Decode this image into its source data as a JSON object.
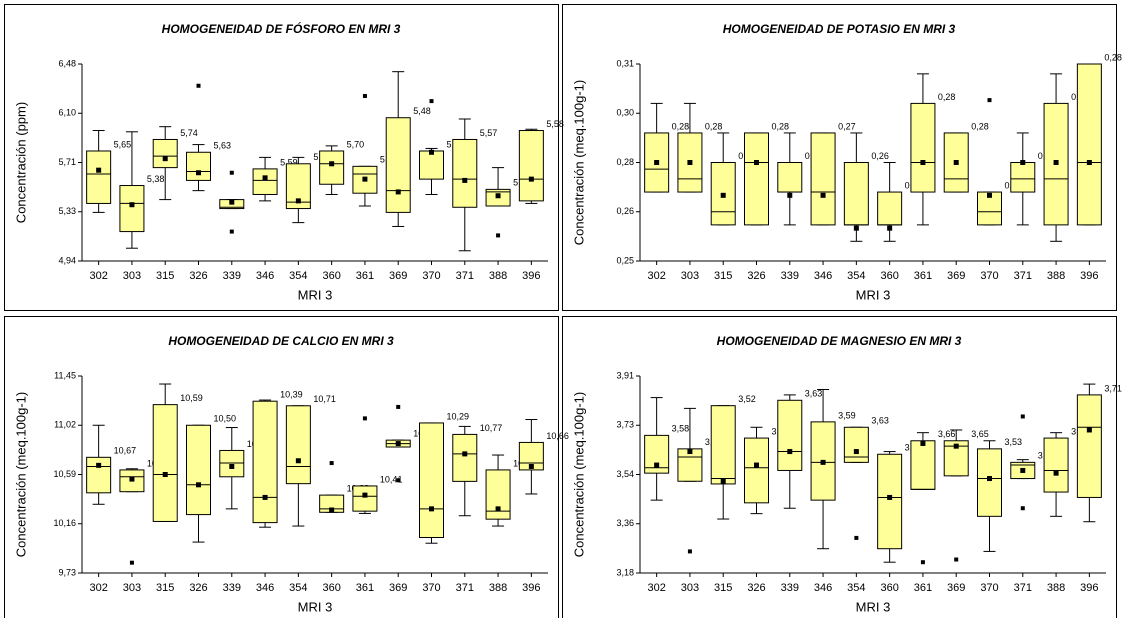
{
  "chart_data": [
    {
      "type": "box",
      "title": "HOMOGENEIDAD DE FÓSFORO EN MRI 3",
      "y_label": "Concentración (ppm)",
      "x_label": "MRI 3",
      "categories": [
        "302",
        "303",
        "315",
        "326",
        "339",
        "346",
        "354",
        "360",
        "361",
        "369",
        "370",
        "371",
        "388",
        "396"
      ],
      "ylim": [
        4.94,
        6.48
      ],
      "yticks": [
        {
          "value": 4.94,
          "label": "4,94"
        },
        {
          "value": 5.325,
          "label": "5,33"
        },
        {
          "value": 5.71,
          "label": "5,71"
        },
        {
          "value": 6.095,
          "label": "6,10"
        },
        {
          "value": 6.48,
          "label": "6,48"
        }
      ],
      "color": "#ffff99",
      "boxes": [
        {
          "low": 5.32,
          "q1": 5.39,
          "median": 5.62,
          "q3": 5.8,
          "high": 5.96,
          "mean": 5.65,
          "outliers": []
        },
        {
          "low": 5.04,
          "q1": 5.17,
          "median": 5.39,
          "q3": 5.53,
          "high": 5.95,
          "mean": 5.38,
          "outliers": []
        },
        {
          "low": 5.42,
          "q1": 5.67,
          "median": 5.76,
          "q3": 5.89,
          "high": 5.99,
          "mean": 5.74,
          "outliers": []
        },
        {
          "low": 5.49,
          "q1": 5.57,
          "median": 5.64,
          "q3": 5.79,
          "high": 5.85,
          "mean": 5.63,
          "outliers": [
            6.31
          ]
        },
        {
          "low": 5.35,
          "q1": 5.35,
          "median": 5.36,
          "q3": 5.42,
          "high": 5.42,
          "mean": 5.4,
          "outliers": [
            5.63,
            5.17
          ]
        },
        {
          "low": 5.41,
          "q1": 5.46,
          "median": 5.57,
          "q3": 5.66,
          "high": 5.75,
          "mean": 5.59,
          "outliers": []
        },
        {
          "low": 5.24,
          "q1": 5.35,
          "median": 5.4,
          "q3": 5.7,
          "high": 5.75,
          "mean": 5.41,
          "outliers": []
        },
        {
          "low": 5.46,
          "q1": 5.54,
          "median": 5.7,
          "q3": 5.8,
          "high": 5.84,
          "mean": 5.7,
          "outliers": []
        },
        {
          "low": 5.37,
          "q1": 5.47,
          "median": 5.62,
          "q3": 5.68,
          "high": 5.68,
          "mean": 5.58,
          "outliers": [
            6.23
          ]
        },
        {
          "low": 5.21,
          "q1": 5.32,
          "median": 5.49,
          "q3": 6.06,
          "high": 6.42,
          "mean": 5.48,
          "outliers": []
        },
        {
          "low": 5.46,
          "q1": 5.58,
          "median": 5.8,
          "q3": 5.8,
          "high": 5.82,
          "mean": 5.79,
          "outliers": [
            6.19
          ]
        },
        {
          "low": 5.02,
          "q1": 5.36,
          "median": 5.58,
          "q3": 5.89,
          "high": 6.05,
          "mean": 5.57,
          "outliers": []
        },
        {
          "low": 5.37,
          "q1": 5.37,
          "median": 5.48,
          "q3": 5.5,
          "high": 5.67,
          "mean": 5.45,
          "outliers": [
            5.14
          ]
        },
        {
          "low": 5.39,
          "q1": 5.41,
          "median": 5.58,
          "q3": 5.96,
          "high": 5.97,
          "mean": 5.58,
          "outliers": []
        }
      ],
      "value_labels": [
        "5,65",
        "5,38",
        "5,74",
        "5,63",
        null,
        "5,59",
        "5,41",
        "5,70",
        "5,58",
        "5,48",
        "5,79",
        "5,57",
        "5,45",
        "5,58"
      ]
    },
    {
      "type": "box",
      "title": "HOMOGENEIDAD DE POTASIO EN MRI 3",
      "y_label": "Concentración (meq.100g-1)",
      "x_label": "MRI 3",
      "categories": [
        "302",
        "303",
        "315",
        "326",
        "339",
        "346",
        "354",
        "360",
        "361",
        "369",
        "370",
        "371",
        "388",
        "396"
      ],
      "ylim": [
        0.25,
        0.31
      ],
      "yticks": [
        {
          "value": 0.25,
          "label": "0,25"
        },
        {
          "value": 0.265,
          "label": "0,26"
        },
        {
          "value": 0.28,
          "label": "0,28"
        },
        {
          "value": 0.295,
          "label": "0,30"
        },
        {
          "value": 0.31,
          "label": "0,31"
        }
      ],
      "color": "#ffff99",
      "boxes": [
        {
          "low": 0.271,
          "q1": 0.271,
          "median": 0.278,
          "q3": 0.289,
          "high": 0.298,
          "mean": 0.28,
          "outliers": []
        },
        {
          "low": 0.271,
          "q1": 0.271,
          "median": 0.275,
          "q3": 0.289,
          "high": 0.298,
          "mean": 0.28,
          "outliers": []
        },
        {
          "low": 0.261,
          "q1": 0.261,
          "median": 0.265,
          "q3": 0.28,
          "high": 0.289,
          "mean": 0.27,
          "outliers": []
        },
        {
          "low": 0.261,
          "q1": 0.261,
          "median": 0.28,
          "q3": 0.289,
          "high": 0.289,
          "mean": 0.28,
          "outliers": []
        },
        {
          "low": 0.261,
          "q1": 0.271,
          "median": 0.271,
          "q3": 0.28,
          "high": 0.289,
          "mean": 0.27,
          "outliers": []
        },
        {
          "low": 0.261,
          "q1": 0.261,
          "median": 0.271,
          "q3": 0.289,
          "high": 0.289,
          "mean": 0.27,
          "outliers": []
        },
        {
          "low": 0.256,
          "q1": 0.261,
          "median": 0.261,
          "q3": 0.28,
          "high": 0.289,
          "mean": 0.26,
          "outliers": []
        },
        {
          "low": 0.256,
          "q1": 0.261,
          "median": 0.261,
          "q3": 0.271,
          "high": 0.28,
          "mean": 0.26,
          "outliers": []
        },
        {
          "low": 0.261,
          "q1": 0.271,
          "median": 0.28,
          "q3": 0.298,
          "high": 0.307,
          "mean": 0.28,
          "outliers": []
        },
        {
          "low": 0.271,
          "q1": 0.271,
          "median": 0.275,
          "q3": 0.289,
          "high": 0.289,
          "mean": 0.28,
          "outliers": []
        },
        {
          "low": 0.261,
          "q1": 0.261,
          "median": 0.265,
          "q3": 0.271,
          "high": 0.271,
          "mean": 0.27,
          "outliers": [
            0.299
          ]
        },
        {
          "low": 0.261,
          "q1": 0.271,
          "median": 0.275,
          "q3": 0.28,
          "high": 0.289,
          "mean": 0.28,
          "outliers": []
        },
        {
          "low": 0.256,
          "q1": 0.261,
          "median": 0.275,
          "q3": 0.298,
          "high": 0.307,
          "mean": 0.28,
          "outliers": []
        },
        {
          "low": 0.261,
          "q1": 0.261,
          "median": 0.28,
          "q3": 0.31,
          "high": 0.31,
          "mean": 0.28,
          "outliers": []
        }
      ],
      "value_labels": [
        "0,28",
        "0,28",
        "0,27",
        "0,28",
        "0,27",
        "0,27",
        "0,26",
        "0,26",
        "0,28",
        "0,28",
        "0,27",
        "0,28",
        "0,28",
        "0,28"
      ]
    },
    {
      "type": "box",
      "title": "HOMOGENEIDAD DE CALCIO EN MRI 3",
      "y_label": "Concentración (meq.100g-1)",
      "x_label": "MRI 3",
      "categories": [
        "302",
        "303",
        "315",
        "326",
        "339",
        "346",
        "354",
        "360",
        "361",
        "369",
        "370",
        "371",
        "388",
        "396"
      ],
      "ylim": [
        9.73,
        11.45
      ],
      "yticks": [
        {
          "value": 9.73,
          "label": "9,73"
        },
        {
          "value": 10.16,
          "label": "10,16"
        },
        {
          "value": 10.59,
          "label": "10,59"
        },
        {
          "value": 11.02,
          "label": "11,02"
        },
        {
          "value": 11.45,
          "label": "11,45"
        }
      ],
      "color": "#ffff99",
      "boxes": [
        {
          "low": 10.33,
          "q1": 10.43,
          "median": 10.66,
          "q3": 10.74,
          "high": 11.02,
          "mean": 10.67,
          "outliers": []
        },
        {
          "low": 10.44,
          "q1": 10.44,
          "median": 10.57,
          "q3": 10.63,
          "high": 10.64,
          "mean": 10.55,
          "outliers": [
            9.82
          ]
        },
        {
          "low": 10.18,
          "q1": 10.18,
          "median": 10.59,
          "q3": 11.2,
          "high": 11.38,
          "mean": 10.59,
          "outliers": []
        },
        {
          "low": 10.0,
          "q1": 10.24,
          "median": 10.5,
          "q3": 11.02,
          "high": 11.02,
          "mean": 10.5,
          "outliers": []
        },
        {
          "low": 10.29,
          "q1": 10.57,
          "median": 10.69,
          "q3": 10.8,
          "high": 11.0,
          "mean": 10.66,
          "outliers": []
        },
        {
          "low": 10.13,
          "q1": 10.17,
          "median": 10.39,
          "q3": 11.23,
          "high": 11.24,
          "mean": 10.39,
          "outliers": []
        },
        {
          "low": 10.14,
          "q1": 10.51,
          "median": 10.66,
          "q3": 11.19,
          "high": 11.19,
          "mean": 10.71,
          "outliers": []
        },
        {
          "low": 10.26,
          "q1": 10.26,
          "median": 10.29,
          "q3": 10.41,
          "high": 10.41,
          "mean": 10.28,
          "outliers": [
            10.69
          ]
        },
        {
          "low": 10.25,
          "q1": 10.27,
          "median": 10.4,
          "q3": 10.49,
          "high": 10.49,
          "mean": 10.41,
          "outliers": [
            11.08
          ]
        },
        {
          "low": 10.83,
          "q1": 10.83,
          "median": 10.86,
          "q3": 10.89,
          "high": 10.89,
          "mean": 10.86,
          "outliers": [
            11.18,
            10.54
          ]
        },
        {
          "low": 9.99,
          "q1": 10.04,
          "median": 10.29,
          "q3": 11.04,
          "high": 11.04,
          "mean": 10.29,
          "outliers": []
        },
        {
          "low": 10.23,
          "q1": 10.53,
          "median": 10.77,
          "q3": 10.94,
          "high": 11.01,
          "mean": 10.77,
          "outliers": []
        },
        {
          "low": 10.14,
          "q1": 10.2,
          "median": 10.27,
          "q3": 10.63,
          "high": 10.76,
          "mean": 10.29,
          "outliers": []
        },
        {
          "low": 10.42,
          "q1": 10.63,
          "median": 10.69,
          "q3": 10.87,
          "high": 11.07,
          "mean": 10.66,
          "outliers": []
        }
      ],
      "value_labels": [
        "10,67",
        "10,55",
        "10,59",
        "10,50",
        "10,66",
        "10,39",
        "10,71",
        "10,28",
        "10,41",
        "10,86",
        "10,29",
        "10,77",
        "10,29",
        "10,66"
      ]
    },
    {
      "type": "box",
      "title": "HOMOGENEIDAD DE MAGNESIO EN MRI 3",
      "y_label": "Concentración (meq.100g-1)",
      "x_label": "MRI 3",
      "categories": [
        "302",
        "303",
        "315",
        "326",
        "339",
        "346",
        "354",
        "360",
        "361",
        "369",
        "370",
        "371",
        "388",
        "396"
      ],
      "ylim": [
        3.18,
        3.91
      ],
      "yticks": [
        {
          "value": 3.18,
          "label": "3,18"
        },
        {
          "value": 3.3625,
          "label": "3,36"
        },
        {
          "value": 3.545,
          "label": "3,54"
        },
        {
          "value": 3.7275,
          "label": "3,73"
        },
        {
          "value": 3.91,
          "label": "3,91"
        }
      ],
      "color": "#ffff99",
      "boxes": [
        {
          "low": 3.45,
          "q1": 3.55,
          "median": 3.57,
          "q3": 3.69,
          "high": 3.83,
          "mean": 3.58,
          "outliers": []
        },
        {
          "low": 3.52,
          "q1": 3.52,
          "median": 3.61,
          "q3": 3.64,
          "high": 3.79,
          "mean": 3.63,
          "outliers": [
            3.26
          ]
        },
        {
          "low": 3.38,
          "q1": 3.51,
          "median": 3.53,
          "q3": 3.8,
          "high": 3.8,
          "mean": 3.52,
          "outliers": []
        },
        {
          "low": 3.4,
          "q1": 3.44,
          "median": 3.57,
          "q3": 3.68,
          "high": 3.72,
          "mean": 3.58,
          "outliers": []
        },
        {
          "low": 3.42,
          "q1": 3.56,
          "median": 3.63,
          "q3": 3.82,
          "high": 3.84,
          "mean": 3.63,
          "outliers": []
        },
        {
          "low": 3.27,
          "q1": 3.45,
          "median": 3.59,
          "q3": 3.74,
          "high": 3.86,
          "mean": 3.59,
          "outliers": []
        },
        {
          "low": 3.59,
          "q1": 3.59,
          "median": 3.61,
          "q3": 3.72,
          "high": 3.72,
          "mean": 3.63,
          "outliers": [
            3.31
          ]
        },
        {
          "low": 3.22,
          "q1": 3.27,
          "median": 3.46,
          "q3": 3.62,
          "high": 3.63,
          "mean": 3.46,
          "outliers": []
        },
        {
          "low": 3.49,
          "q1": 3.49,
          "median": 3.49,
          "q3": 3.67,
          "high": 3.7,
          "mean": 3.66,
          "outliers": [
            3.22
          ]
        },
        {
          "low": 3.54,
          "q1": 3.54,
          "median": 3.65,
          "q3": 3.67,
          "high": 3.71,
          "mean": 3.65,
          "outliers": [
            3.23
          ]
        },
        {
          "low": 3.26,
          "q1": 3.39,
          "median": 3.53,
          "q3": 3.64,
          "high": 3.67,
          "mean": 3.53,
          "outliers": []
        },
        {
          "low": 3.53,
          "q1": 3.53,
          "median": 3.58,
          "q3": 3.59,
          "high": 3.6,
          "mean": 3.56,
          "outliers": [
            3.76,
            3.42
          ]
        },
        {
          "low": 3.39,
          "q1": 3.48,
          "median": 3.56,
          "q3": 3.68,
          "high": 3.7,
          "mean": 3.55,
          "outliers": []
        },
        {
          "low": 3.37,
          "q1": 3.46,
          "median": 3.72,
          "q3": 3.84,
          "high": 3.88,
          "mean": 3.71,
          "outliers": []
        }
      ],
      "value_labels": [
        "3,58",
        "3,63",
        "3,52",
        "3,58",
        "3,63",
        "3,59",
        "3,63",
        "3,46",
        "3,66",
        "3,65",
        "3,53",
        "3,56",
        "3,55",
        "3,71"
      ]
    }
  ]
}
